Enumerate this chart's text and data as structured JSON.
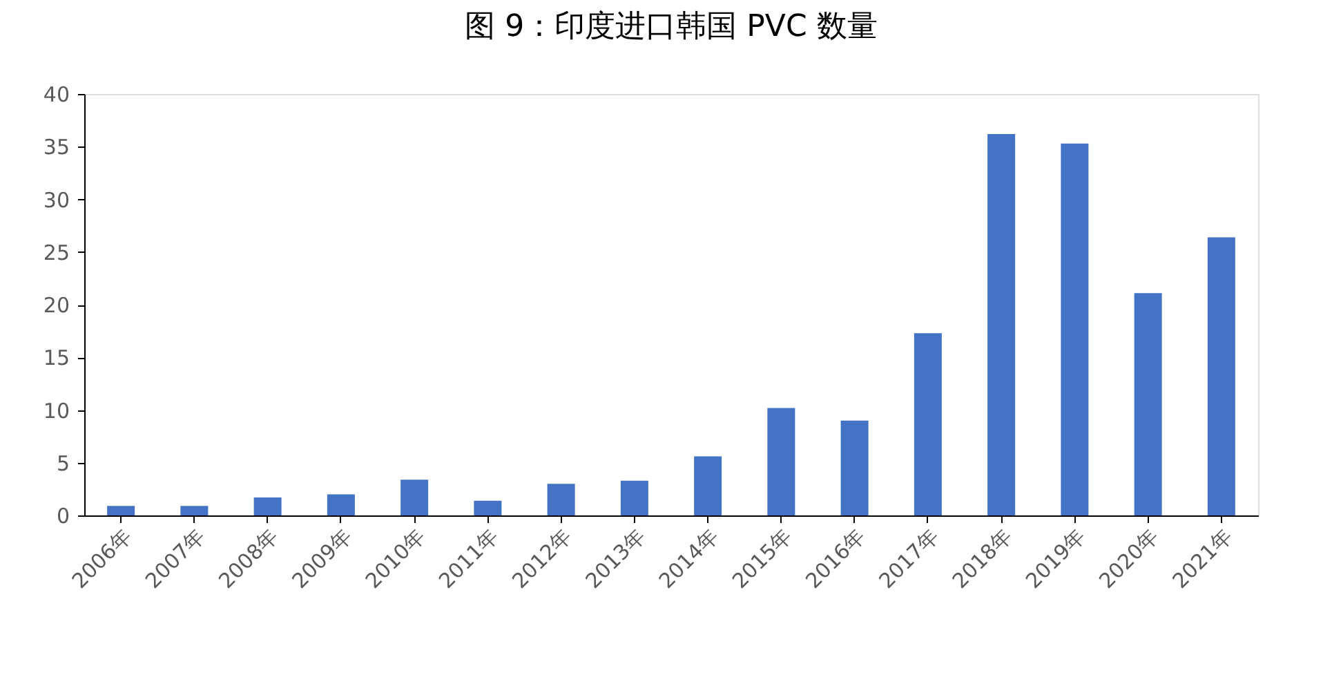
{
  "chart_data": {
    "type": "bar",
    "title": "图 9：印度进口韩国 PVC 数量",
    "categories": [
      "2006年",
      "2007年",
      "2008年",
      "2009年",
      "2010年",
      "2011年",
      "2012年",
      "2013年",
      "2014年",
      "2015年",
      "2016年",
      "2017年",
      "2018年",
      "2019年",
      "2020年",
      "2021年"
    ],
    "values": [
      0.9,
      0.9,
      1.7,
      2.0,
      3.4,
      1.4,
      3.0,
      3.3,
      5.6,
      10.2,
      9.0,
      17.3,
      36.2,
      35.3,
      21.1,
      26.4
    ],
    "color": "#4472c4",
    "ylim": [
      0,
      40
    ],
    "yticks": [
      0,
      5,
      10,
      15,
      20,
      25,
      30,
      35,
      40
    ],
    "grid": false
  }
}
